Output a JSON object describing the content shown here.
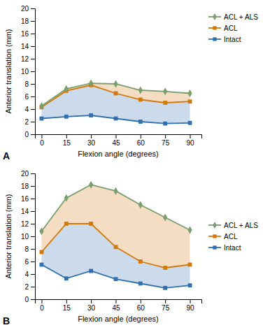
{
  "chart_data": [
    {
      "type": "line",
      "x": [
        0,
        15,
        30,
        45,
        60,
        75,
        90
      ],
      "series": [
        {
          "name": "Intact",
          "color": "#3070b0",
          "marker": "square",
          "values": [
            2.5,
            2.8,
            3.0,
            2.5,
            2.0,
            1.7,
            1.8
          ]
        },
        {
          "name": "ACL",
          "color": "#d4780a",
          "marker": "square",
          "values": [
            4.3,
            6.9,
            7.8,
            6.5,
            5.5,
            5.0,
            5.2
          ]
        },
        {
          "name": "ACL + ALS",
          "color": "#7a9e6e",
          "marker": "diamond",
          "values": [
            4.5,
            7.2,
            8.1,
            8.0,
            7.0,
            6.8,
            6.5
          ]
        }
      ],
      "xlabel": "Flexion angle (degrees)",
      "ylabel": "Anterior translation (mm)",
      "xlim": [
        -4,
        97
      ],
      "xticks": [
        0,
        15,
        30,
        45,
        60,
        75,
        90
      ],
      "ylim": [
        0,
        20
      ],
      "yticks": [
        0,
        2,
        4,
        6,
        8,
        10,
        12,
        14,
        16,
        18,
        20
      ],
      "grid": false,
      "legend": "upper right",
      "annotations": [
        "A"
      ]
    },
    {
      "type": "line",
      "x": [
        0,
        15,
        30,
        45,
        60,
        75,
        90
      ],
      "series": [
        {
          "name": "Intact",
          "color": "#3070b0",
          "marker": "square",
          "values": [
            5.5,
            3.3,
            4.5,
            3.2,
            2.5,
            1.8,
            2.2
          ]
        },
        {
          "name": "ACL",
          "color": "#d4780a",
          "marker": "square",
          "values": [
            7.5,
            12.0,
            12.0,
            8.3,
            6.0,
            5.0,
            5.5
          ]
        },
        {
          "name": "ACL + ALS",
          "color": "#7a9e6e",
          "marker": "diamond",
          "values": [
            10.8,
            16.1,
            18.2,
            17.2,
            15.0,
            13.0,
            11.0
          ]
        }
      ],
      "xlabel": "Flexion angle (degrees)",
      "ylabel": "Anterior translation (mm)",
      "xlim": [
        -4,
        97
      ],
      "xticks": [
        0,
        15,
        30,
        45,
        60,
        75,
        90
      ],
      "ylim": [
        0,
        20
      ],
      "yticks": [
        0,
        2,
        4,
        6,
        8,
        10,
        12,
        14,
        16,
        18,
        20
      ],
      "grid": false,
      "legend": "center right",
      "annotations": [
        "B"
      ]
    }
  ]
}
